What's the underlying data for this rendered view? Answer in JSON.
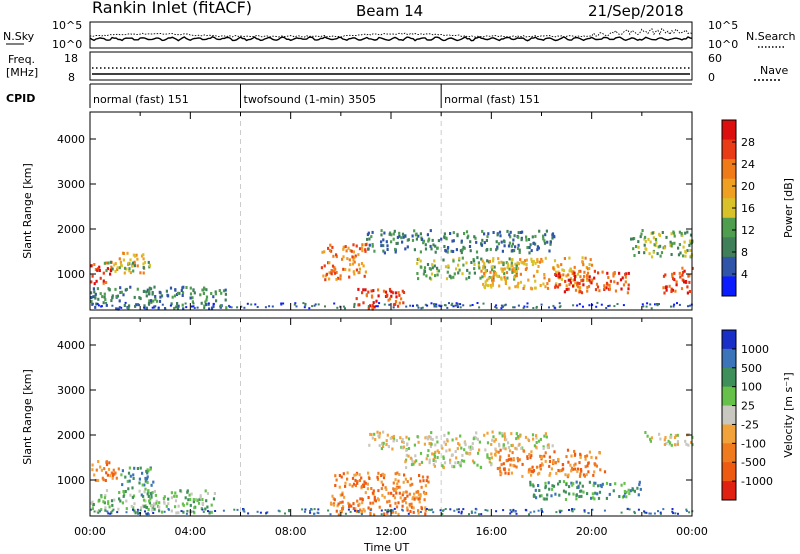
{
  "header": {
    "station": "Rankin Inlet (fitACF)",
    "beam": "Beam 14",
    "date": "21/Sep/2018"
  },
  "aux_panels": {
    "nsky_label": "N.Sky",
    "nsky_ticks": [
      "10^5",
      "10^0"
    ],
    "nsearch_label": "N.Search",
    "nsearch_ticks": [
      "10^5",
      "10^0"
    ],
    "freq_label_1": "Freq.",
    "freq_label_2": "[MHz]",
    "freq_ticks": [
      "18",
      "8"
    ],
    "nave_label": "Nave",
    "nave_ticks": [
      "60",
      "0"
    ],
    "cpid_label": "CPID"
  },
  "cpid_segments": [
    {
      "label": "normal (fast) 151",
      "start_h": 0,
      "end_h": 6
    },
    {
      "label": "twofsound (1-min) 3505",
      "start_h": 6,
      "end_h": 14
    },
    {
      "label": "normal (fast) 151",
      "start_h": 14,
      "end_h": 24
    }
  ],
  "colors": {
    "power_scale": [
      "#0b1cff",
      "#2f54a8",
      "#3f7f5a",
      "#4f9d4f",
      "#d9c12a",
      "#f0a020",
      "#f07a18",
      "#e83b16",
      "#dd0e0e"
    ],
    "velocity_scale": [
      "#1a2fc8",
      "#3b74b8",
      "#3e8f5a",
      "#66c14a",
      "#c8c8c0",
      "#f2a23a",
      "#f07a1e",
      "#ee5a12",
      "#e02010"
    ],
    "grid_dash": "#cccccc"
  },
  "chart_data": [
    {
      "type": "heatmap",
      "title": "Power",
      "xlabel": "Time UT",
      "ylabel": "Slant Range [km]",
      "xlim": [
        0,
        24
      ],
      "ylim": [
        200,
        4600
      ],
      "x_ticks": [
        "00:00",
        "04:00",
        "08:00",
        "12:00",
        "16:00",
        "20:00",
        "00:00"
      ],
      "y_ticks": [
        "1000",
        "2000",
        "3000",
        "4000"
      ],
      "colorbar": {
        "label": "Power [dB]",
        "range": [
          0,
          32
        ],
        "ticks": [
          "4",
          "8",
          "12",
          "16",
          "20",
          "24",
          "28"
        ]
      },
      "regions": [
        {
          "t0": 0.0,
          "t1": 0.8,
          "r0": 800,
          "r1": 1300,
          "value": 27
        },
        {
          "t0": 0.8,
          "t1": 2.2,
          "r0": 1050,
          "r1": 1500,
          "value": 20
        },
        {
          "t0": 0.0,
          "t1": 5.5,
          "r0": 250,
          "r1": 750,
          "value": 9
        },
        {
          "t0": 0.5,
          "t1": 2.5,
          "r0": 1100,
          "r1": 1300,
          "value": 14
        },
        {
          "t0": 9.2,
          "t1": 11.0,
          "r0": 900,
          "r1": 1700,
          "value": 22
        },
        {
          "t0": 10.5,
          "t1": 12.5,
          "r0": 250,
          "r1": 700,
          "value": 28
        },
        {
          "t0": 11.0,
          "t1": 18.5,
          "r0": 1500,
          "r1": 2000,
          "value": 10
        },
        {
          "t0": 13.0,
          "t1": 17.0,
          "r0": 900,
          "r1": 1400,
          "value": 14
        },
        {
          "t0": 15.5,
          "t1": 20.0,
          "r0": 700,
          "r1": 1400,
          "value": 18
        },
        {
          "t0": 18.5,
          "t1": 21.5,
          "r0": 600,
          "r1": 1100,
          "value": 26
        },
        {
          "t0": 21.5,
          "t1": 24.0,
          "r0": 1400,
          "r1": 2000,
          "value": 14
        },
        {
          "t0": 22.8,
          "t1": 24.0,
          "r0": 600,
          "r1": 1200,
          "value": 27
        }
      ]
    },
    {
      "type": "heatmap",
      "title": "Velocity",
      "xlabel": "Time UT",
      "ylabel": "Slant Range [km]",
      "xlim": [
        0,
        24
      ],
      "ylim": [
        200,
        4600
      ],
      "x_ticks": [
        "00:00",
        "04:00",
        "08:00",
        "12:00",
        "16:00",
        "20:00",
        "00:00"
      ],
      "y_ticks": [
        "1000",
        "2000",
        "3000",
        "4000"
      ],
      "colorbar": {
        "label": "Velocity [m s⁻¹]",
        "ticks": [
          "1000",
          "500",
          "100",
          "25",
          "-25",
          "-100",
          "-500",
          "-1000"
        ]
      },
      "regions": [
        {
          "t0": 0.0,
          "t1": 1.2,
          "r0": 1000,
          "r1": 1450,
          "value": -500
        },
        {
          "t0": 1.2,
          "t1": 2.5,
          "r0": 700,
          "r1": 1300,
          "value": 300
        },
        {
          "t0": 0.0,
          "t1": 5.0,
          "r0": 300,
          "r1": 800,
          "value": 50
        },
        {
          "t0": 9.5,
          "t1": 13.5,
          "r0": 250,
          "r1": 1200,
          "value": -500
        },
        {
          "t0": 11.0,
          "t1": 18.5,
          "r0": 1700,
          "r1": 2100,
          "value": 0
        },
        {
          "t0": 12.5,
          "t1": 16.0,
          "r0": 1300,
          "r1": 1700,
          "value": 0
        },
        {
          "t0": 16.0,
          "t1": 20.5,
          "r0": 1100,
          "r1": 1700,
          "value": -300
        },
        {
          "t0": 17.5,
          "t1": 22.0,
          "r0": 600,
          "r1": 1000,
          "value": 300
        },
        {
          "t0": 22.0,
          "t1": 24.0,
          "r0": 1800,
          "r1": 2100,
          "value": 0
        }
      ]
    }
  ]
}
